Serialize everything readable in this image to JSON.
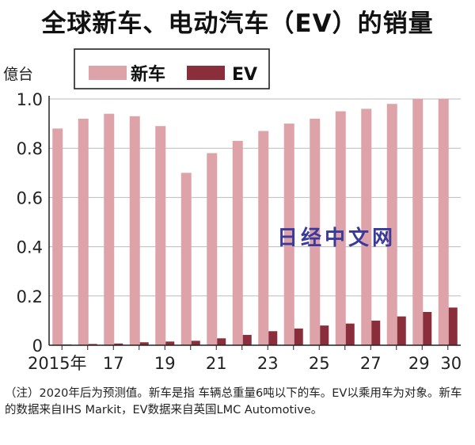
{
  "title": "全球新车、电动汽车（EV）的销量",
  "watermark": "日经中文网",
  "footnote": "（注）2020年后为预测值。新车是指  车辆总重量6吨以下的车。EV以乘用车为对象。新车的数据来自IHS Markit，EV数据来自英国LMC Automotive。",
  "colors": {
    "new_car": "#dda3a8",
    "ev": "#8a2e3b"
  },
  "chart_data": {
    "type": "bar",
    "y_unit_label": "億台",
    "ylim": [
      0,
      1.0
    ],
    "yticks": [
      "0",
      "0.2",
      "0.4",
      "0.6",
      "0.8",
      "1.0"
    ],
    "categories": [
      "2015",
      "2016",
      "2017",
      "2018",
      "2019",
      "2020",
      "2021",
      "2022",
      "2023",
      "2024",
      "2025",
      "2026",
      "2027",
      "2028",
      "2029",
      "2030"
    ],
    "x_tick_labels": [
      "2015年",
      "",
      "17",
      "",
      "19",
      "",
      "21",
      "",
      "23",
      "",
      "25",
      "",
      "27",
      "",
      "29",
      "30"
    ],
    "legend": [
      "新车",
      "EV"
    ],
    "series": [
      {
        "name": "新车",
        "values": [
          0.88,
          0.92,
          0.94,
          0.93,
          0.89,
          0.7,
          0.78,
          0.83,
          0.87,
          0.9,
          0.92,
          0.95,
          0.96,
          0.98,
          1.0,
          1.0
        ]
      },
      {
        "name": "EV",
        "values": [
          0.003,
          0.005,
          0.007,
          0.012,
          0.015,
          0.018,
          0.028,
          0.042,
          0.057,
          0.068,
          0.08,
          0.088,
          0.1,
          0.117,
          0.135,
          0.153
        ]
      }
    ]
  }
}
